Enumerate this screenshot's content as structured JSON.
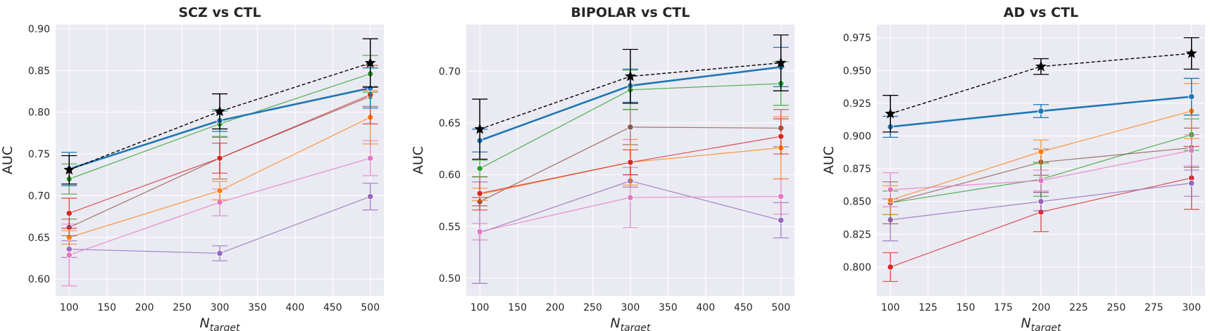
{
  "colors": {
    "blue": "#1f77b4",
    "orange": "#ff7f0e",
    "green": "#2ca02c",
    "red": "#d62728",
    "purple": "#9467bd",
    "brown": "#8c564b",
    "pink": "#e377c2",
    "black": "#000000"
  },
  "chart_data": [
    {
      "type": "line",
      "title": "SCZ vs CTL",
      "xlabel": {
        "main": "N",
        "sub": "target"
      },
      "ylabel": "AUC",
      "x": [
        100,
        300,
        500
      ],
      "xlim": [
        82,
        518
      ],
      "ylim": [
        0.58,
        0.905
      ],
      "xticks": [
        100,
        150,
        200,
        250,
        300,
        350,
        400,
        450,
        500
      ],
      "xtick_labels": [
        "100",
        "150",
        "200",
        "250",
        "300",
        "350",
        "400",
        "450",
        "500"
      ],
      "yticks": [
        0.6,
        0.65,
        0.7,
        0.75,
        0.8,
        0.85,
        0.9
      ],
      "ytick_labels": [
        "0.60",
        "0.65",
        "0.70",
        "0.75",
        "0.80",
        "0.85",
        "0.90"
      ],
      "grid": true,
      "series": [
        {
          "color": "purple",
          "values": [
            0.636,
            0.631,
            0.699
          ],
          "err": [
            0.01,
            0.009,
            0.016
          ]
        },
        {
          "color": "pink",
          "values": [
            0.629,
            0.692,
            0.745
          ],
          "err": [
            0.037,
            0.016,
            0.021
          ]
        },
        {
          "color": "orange",
          "values": [
            0.65,
            0.706,
            0.794
          ],
          "err": [
            0.008,
            0.011,
            0.032
          ]
        },
        {
          "color": "brown",
          "values": [
            0.662,
            0.745,
            0.819
          ],
          "err": [
            0.01,
            0.025,
            0.012
          ]
        },
        {
          "color": "red",
          "values": [
            0.679,
            0.745,
            0.821
          ],
          "err": [
            0.018,
            0.018,
            0.035
          ]
        },
        {
          "color": "green",
          "values": [
            0.72,
            0.786,
            0.846
          ],
          "err": [
            0.018,
            0.015,
            0.022
          ]
        },
        {
          "color": "blue",
          "values": [
            0.732,
            0.79,
            0.829
          ],
          "err": [
            0.02,
            0.013,
            0.024
          ],
          "thick": true
        },
        {
          "color": "black",
          "values": [
            0.731,
            0.801,
            0.859
          ],
          "err": [
            0.017,
            0.021,
            0.029
          ],
          "dashed": true,
          "marker": "star"
        }
      ]
    },
    {
      "type": "line",
      "title": "BIPOLAR vs CTL",
      "xlabel": {
        "main": "N",
        "sub": "target"
      },
      "ylabel": "AUC",
      "x": [
        100,
        300,
        500
      ],
      "xlim": [
        82,
        518
      ],
      "ylim": [
        0.483,
        0.745
      ],
      "xticks": [
        100,
        150,
        200,
        250,
        300,
        350,
        400,
        450,
        500
      ],
      "xtick_labels": [
        "100",
        "150",
        "200",
        "250",
        "300",
        "350",
        "400",
        "450",
        "500"
      ],
      "yticks": [
        0.5,
        0.55,
        0.6,
        0.65,
        0.7
      ],
      "ytick_labels": [
        "0.50",
        "0.55",
        "0.60",
        "0.65",
        "0.70"
      ],
      "grid": true,
      "series": [
        {
          "color": "purple",
          "values": [
            0.544,
            0.594,
            0.556
          ],
          "err": [
            0.049,
            0.006,
            0.017
          ]
        },
        {
          "color": "pink",
          "values": [
            0.545,
            0.578,
            0.579
          ],
          "err": [
            0.008,
            0.029,
            0.017
          ]
        },
        {
          "color": "brown",
          "values": [
            0.574,
            0.646,
            0.645
          ],
          "err": [
            0.004,
            0.017,
            0.018
          ]
        },
        {
          "color": "orange",
          "values": [
            0.581,
            0.612,
            0.626
          ],
          "err": [
            0.006,
            0.022,
            0.03
          ]
        },
        {
          "color": "red",
          "values": [
            0.582,
            0.612,
            0.637
          ],
          "err": [
            0.016,
            0.012,
            0.017
          ]
        },
        {
          "color": "green",
          "values": [
            0.606,
            0.682,
            0.688
          ],
          "err": [
            0.008,
            0.019,
            0.021
          ]
        },
        {
          "color": "blue",
          "values": [
            0.633,
            0.686,
            0.704
          ],
          "err": [
            0.011,
            0.016,
            0.019
          ],
          "thick": true
        },
        {
          "color": "black",
          "values": [
            0.644,
            0.695,
            0.708
          ],
          "err": [
            0.029,
            0.026,
            0.027
          ],
          "dashed": true,
          "marker": "star"
        }
      ]
    },
    {
      "type": "line",
      "title": "AD vs CTL",
      "xlabel": {
        "main": "N",
        "sub": "target"
      },
      "ylabel": "AUC",
      "x": [
        100,
        200,
        300
      ],
      "xlim": [
        91,
        309
      ],
      "ylim": [
        0.778,
        0.985
      ],
      "xticks": [
        100,
        125,
        150,
        175,
        200,
        225,
        250,
        275,
        300
      ],
      "xtick_labels": [
        "100",
        "125",
        "150",
        "175",
        "200",
        "225",
        "250",
        "275",
        "300"
      ],
      "yticks": [
        0.8,
        0.825,
        0.85,
        0.875,
        0.9,
        0.925,
        0.95,
        0.975
      ],
      "ytick_labels": [
        "0.800",
        "0.825",
        "0.850",
        "0.875",
        "0.900",
        "0.925",
        "0.950",
        "0.975"
      ],
      "grid": true,
      "series": [
        {
          "color": "red",
          "values": [
            0.8,
            0.842,
            0.868
          ],
          "err": [
            0.011,
            0.015,
            0.024
          ]
        },
        {
          "color": "purple",
          "values": [
            0.836,
            0.85,
            0.864
          ],
          "err": [
            0.016,
            0.007,
            0.01
          ]
        },
        {
          "color": "green",
          "values": [
            0.849,
            0.867,
            0.901
          ],
          "err": [
            0.009,
            0.013,
            0.012
          ]
        },
        {
          "color": "brown",
          "values": [
            0.849,
            0.88,
            0.891
          ],
          "err": [
            0.016,
            0.01,
            0.015
          ]
        },
        {
          "color": "orange",
          "values": [
            0.851,
            0.888,
            0.919
          ],
          "err": [
            0.011,
            0.009,
            0.021
          ]
        },
        {
          "color": "pink",
          "values": [
            0.859,
            0.866,
            0.889
          ],
          "err": [
            0.013,
            0.008,
            0.012
          ]
        },
        {
          "color": "blue",
          "values": [
            0.907,
            0.919,
            0.93
          ],
          "err": [
            0.008,
            0.005,
            0.014
          ],
          "thick": true
        },
        {
          "color": "black",
          "values": [
            0.917,
            0.953,
            0.963
          ],
          "err": [
            0.014,
            0.006,
            0.012
          ],
          "dashed": true,
          "marker": "star"
        }
      ]
    }
  ]
}
